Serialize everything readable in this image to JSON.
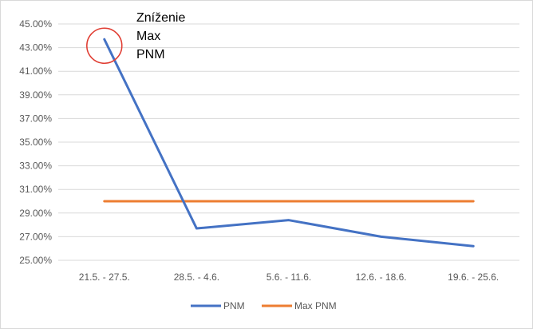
{
  "chart_data": {
    "type": "line",
    "categories": [
      "21.5. - 27.5.",
      "28.5. - 4.6.",
      "5.6. - 11.6.",
      "12.6. - 18.6.",
      "19.6. - 25.6."
    ],
    "series": [
      {
        "name": "PNM",
        "values": [
          43.7,
          27.7,
          28.4,
          27.0,
          26.2
        ],
        "color": "#4472C4"
      },
      {
        "name": "Max PNM",
        "values": [
          30.0,
          30.0,
          30.0,
          30.0,
          30.0
        ],
        "color": "#ED7D31"
      }
    ],
    "ylim": [
      25,
      45
    ],
    "yticks": [
      "25.00%",
      "27.00%",
      "29.00%",
      "31.00%",
      "33.00%",
      "35.00%",
      "37.00%",
      "39.00%",
      "41.00%",
      "43.00%",
      "45.00%"
    ],
    "annotation": {
      "lines": [
        "Zníženie",
        "Max",
        "PNM"
      ],
      "circle_color": "#E03C31",
      "target_series": "PNM",
      "target_index": 0
    },
    "grid": true,
    "legend_position": "bottom"
  }
}
